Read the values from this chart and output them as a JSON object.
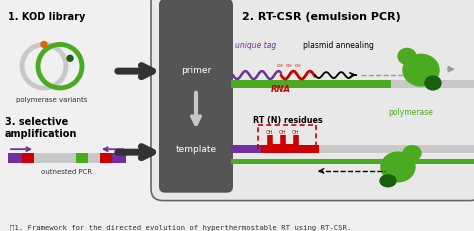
{
  "title": "2. RT-CSR (emulsion PCR)",
  "caption": "图1. Framework for the directed evolution of hyperthermostable RT using RT-CSR.",
  "bg_color": "#f0f0f0",
  "box_bg": "#e8e8e8",
  "dark_panel_bg": "#555555",
  "green_color": "#4aaa20",
  "dark_green": "#1a6010",
  "purple_color": "#7030a0",
  "red_color": "#cc0000",
  "gray_color": "#999999",
  "light_gray": "#c8c8c8",
  "dark_gray": "#333333",
  "black": "#000000",
  "white": "#ffffff",
  "section1_title": "1. KOD library",
  "section1_sub": "polymerase variants",
  "section3_title": "3. selective\namplification",
  "section3_sub": "outnested PCR",
  "label_primer": "primer",
  "label_template": "template",
  "label_unique_tag": "unique tag",
  "label_plasmid": "plasmid annealing",
  "label_rna": "RNA",
  "label_polymerase": "polymerase",
  "label_rt": "RT (N) residues"
}
